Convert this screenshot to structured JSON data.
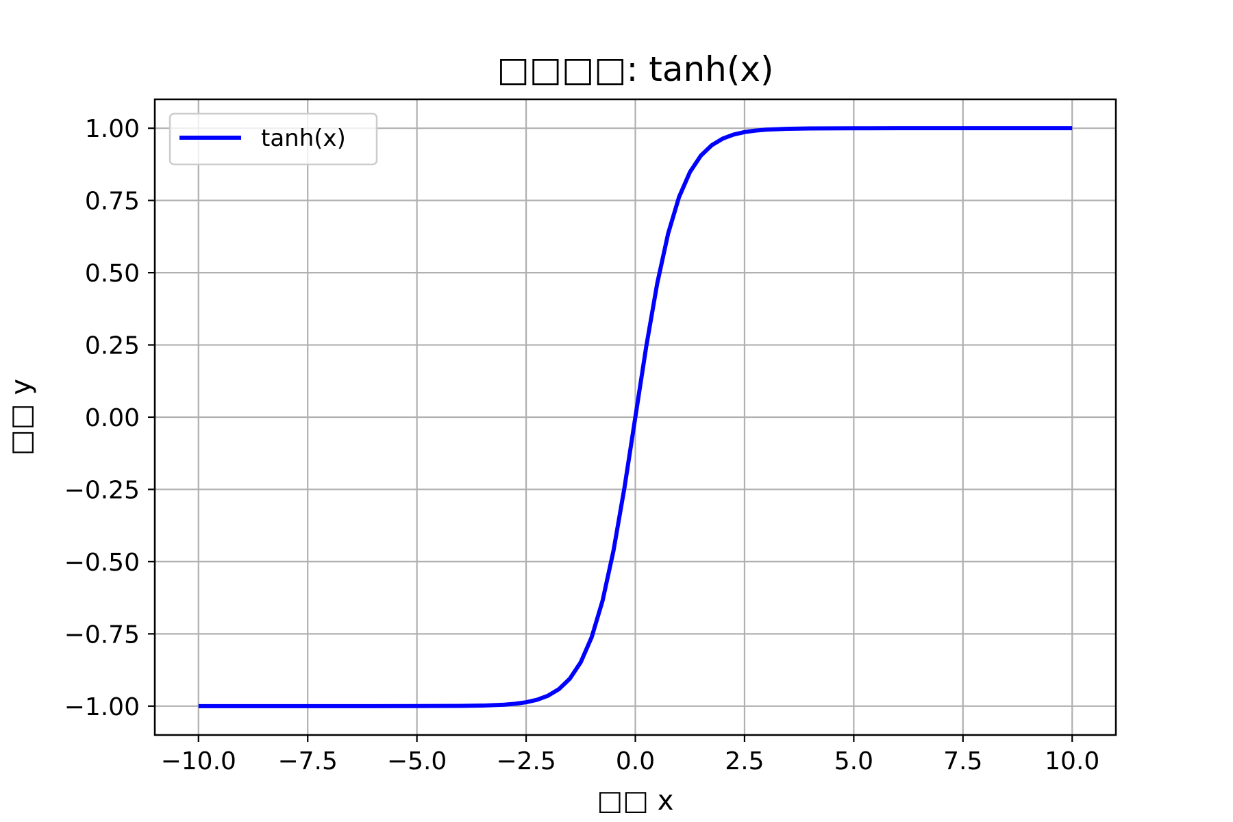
{
  "chart_data": {
    "type": "line",
    "title": "□□□□: tanh(x)",
    "xlabel": "□□ x",
    "ylabel": "□□ y",
    "xlim": [
      -11.0,
      11.0
    ],
    "ylim": [
      -1.1,
      1.1
    ],
    "x_ticks": [
      "−10.0",
      "−7.5",
      "−5.0",
      "−2.5",
      "0.0",
      "2.5",
      "5.0",
      "7.5",
      "10.0"
    ],
    "y_ticks": [
      "−1.00",
      "−0.75",
      "−0.50",
      "−0.25",
      "0.00",
      "0.25",
      "0.50",
      "0.75",
      "1.00"
    ],
    "grid": true,
    "legend_position": "upper-left",
    "series": [
      {
        "name": "tanh(x)",
        "color": "#0000ff",
        "x": [
          -10,
          -8,
          -6,
          -5,
          -4,
          -3.5,
          -3,
          -2.75,
          -2.5,
          -2.25,
          -2,
          -1.75,
          -1.5,
          -1.25,
          -1,
          -0.75,
          -0.5,
          -0.25,
          0,
          0.25,
          0.5,
          0.75,
          1,
          1.25,
          1.5,
          1.75,
          2,
          2.25,
          2.5,
          2.75,
          3,
          3.5,
          4,
          5,
          6,
          8,
          10
        ],
        "y": [
          -1.0,
          -1.0,
          -1.0,
          -0.9999,
          -0.9993,
          -0.9982,
          -0.9951,
          -0.9918,
          -0.9866,
          -0.978,
          -0.964,
          -0.9414,
          -0.9051,
          -0.8483,
          -0.7616,
          -0.6351,
          -0.4621,
          -0.2449,
          0.0,
          0.2449,
          0.4621,
          0.6351,
          0.7616,
          0.8483,
          0.9051,
          0.9414,
          0.964,
          0.978,
          0.9866,
          0.9918,
          0.9951,
          0.9982,
          0.9993,
          0.9999,
          1.0,
          1.0,
          1.0
        ]
      }
    ]
  }
}
